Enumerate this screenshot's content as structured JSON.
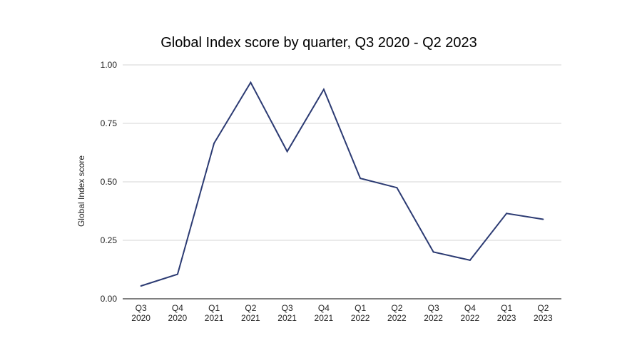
{
  "chart_data": {
    "type": "line",
    "title": "Global Index score by quarter, Q3 2020 - Q2 2023",
    "xlabel": "",
    "ylabel": "Global Index score",
    "categories": [
      [
        "Q3",
        "2020"
      ],
      [
        "Q4",
        "2020"
      ],
      [
        "Q1",
        "2021"
      ],
      [
        "Q2",
        "2021"
      ],
      [
        "Q3",
        "2021"
      ],
      [
        "Q4",
        "2021"
      ],
      [
        "Q1",
        "2022"
      ],
      [
        "Q2",
        "2022"
      ],
      [
        "Q3",
        "2022"
      ],
      [
        "Q4",
        "2022"
      ],
      [
        "Q1",
        "2023"
      ],
      [
        "Q2",
        "2023"
      ]
    ],
    "values": [
      0.055,
      0.105,
      0.665,
      0.925,
      0.63,
      0.895,
      0.515,
      0.475,
      0.2,
      0.165,
      0.365,
      0.34
    ],
    "y_ticks": [
      "0.00",
      "0.25",
      "0.50",
      "0.75",
      "1.00"
    ],
    "ylim": [
      0,
      1
    ],
    "grid": true,
    "legend": "none",
    "line_color": "#2c3b73",
    "grid_color": "#d6d6d6",
    "axis_color": "#333333"
  }
}
